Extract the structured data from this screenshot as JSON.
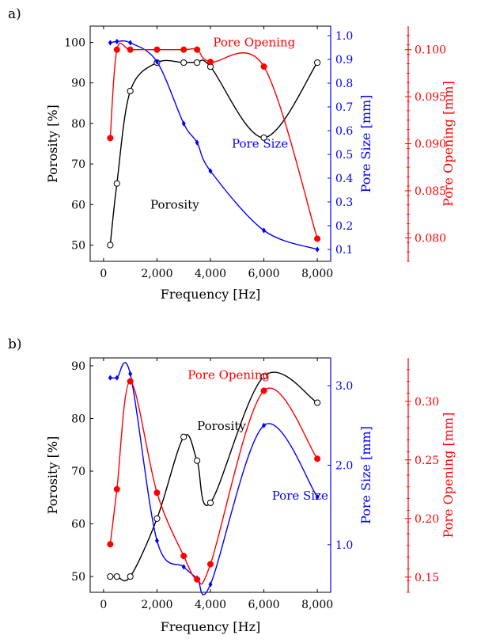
{
  "panels": [
    {
      "label": "a)",
      "chart_data": {
        "type": "line",
        "xlabel": "Frequency [Hz]",
        "x_ticks": [
          0,
          2000,
          4000,
          6000,
          8000
        ],
        "x_tick_labels": [
          "0",
          "2,000",
          "4,000",
          "6,000",
          "8,000"
        ],
        "xlim": [
          -500,
          8500
        ],
        "axes": [
          {
            "key": "left",
            "label": "Porosity [%]",
            "color": "#000000",
            "ylim": [
              46,
              104
            ],
            "ticks": [
              50,
              60,
              70,
              80,
              90,
              100
            ],
            "tick_labels": [
              "50",
              "60",
              "70",
              "80",
              "90",
              "100"
            ]
          },
          {
            "key": "right1",
            "label": "Pore Size [mm]",
            "color": "#0000ff",
            "ylim": [
              0.05,
              1.04
            ],
            "ticks": [
              0.1,
              0.2,
              0.3,
              0.4,
              0.5,
              0.6,
              0.7,
              0.8,
              0.9,
              1.0
            ],
            "tick_labels": [
              "0.1",
              "0.2",
              "0.3",
              "0.4",
              "0.5",
              "0.6",
              "0.7",
              "0.8",
              "0.9",
              "1.0"
            ]
          },
          {
            "key": "right2",
            "label": "Pore Opening [mm]",
            "color": "#ff0000",
            "ylim": [
              0.0775,
              0.1025
            ],
            "ticks": [
              0.08,
              0.085,
              0.09,
              0.095,
              0.1
            ],
            "tick_labels": [
              "0.080",
              "0.085",
              "0.090",
              "0.095",
              "0.100"
            ]
          }
        ],
        "series": [
          {
            "name": "Porosity",
            "axis": "left",
            "color": "#000000",
            "marker": "circle-open",
            "x": [
              250,
              500,
              1000,
              2000,
              3000,
              3500,
              4000,
              6000,
              8000
            ],
            "y": [
              50,
              65.2,
              88,
              95,
              95,
              95,
              94,
              76.5,
              95
            ]
          },
          {
            "name": "Pore Size",
            "axis": "right1",
            "color": "#0000ff",
            "marker": "diamond",
            "x": [
              250,
              500,
              1000,
              2000,
              3000,
              3500,
              4000,
              6000,
              8000
            ],
            "y": [
              0.97,
              0.975,
              0.97,
              0.89,
              0.63,
              0.55,
              0.43,
              0.18,
              0.1
            ]
          },
          {
            "name": "Pore Opening",
            "axis": "right2",
            "color": "#ff0000",
            "marker": "circle",
            "x": [
              250,
              500,
              1000,
              2000,
              3000,
              3500,
              4000,
              6000,
              8000
            ],
            "y": [
              0.0906,
              0.1,
              0.1,
              0.1,
              0.1,
              0.1,
              0.0987,
              0.0982,
              0.0799
            ]
          }
        ],
        "annotations": [
          {
            "text": "Pore Opening",
            "color": "#ff0000",
            "x": 4100,
            "y": 99
          },
          {
            "text": "Pore Size",
            "color": "#0000ff",
            "x": 4800,
            "y": 74
          },
          {
            "text": "Porosity",
            "color": "#000000",
            "x": 1750,
            "y": 59
          }
        ]
      }
    },
    {
      "label": "b)",
      "chart_data": {
        "type": "line",
        "xlabel": "Frequency [Hz]",
        "x_ticks": [
          0,
          2000,
          4000,
          6000,
          8000
        ],
        "x_tick_labels": [
          "0",
          "2,000",
          "4,000",
          "6,000",
          "8,000"
        ],
        "xlim": [
          -500,
          8500
        ],
        "axes": [
          {
            "key": "left",
            "label": "Porosity [%]",
            "color": "#000000",
            "ylim": [
              47,
              91.5
            ],
            "ticks": [
              50,
              60,
              70,
              80,
              90
            ],
            "tick_labels": [
              "50",
              "60",
              "70",
              "80",
              "90"
            ]
          },
          {
            "key": "right1",
            "label": "Pore Size [mm]",
            "color": "#0000ff",
            "ylim": [
              0.4,
              3.35
            ],
            "ticks": [
              1.0,
              2.0,
              3.0
            ],
            "tick_labels": [
              "1.0",
              "2.0",
              "3.0"
            ]
          },
          {
            "key": "right2",
            "label": "Pore Opening [mm]",
            "color": "#ff0000",
            "ylim": [
              0.137,
              0.337
            ],
            "ticks": [
              0.15,
              0.2,
              0.25,
              0.3
            ],
            "tick_labels": [
              "0.15",
              "0.20",
              "0.25",
              "0.30"
            ]
          }
        ],
        "series": [
          {
            "name": "Porosity",
            "axis": "left",
            "color": "#000000",
            "marker": "circle-open",
            "x": [
              250,
              500,
              1000,
              2000,
              3000,
              3500,
              4000,
              6000,
              8000
            ],
            "y": [
              50,
              50,
              50,
              61,
              76.5,
              72,
              64,
              88,
              83
            ]
          },
          {
            "name": "Pore Size",
            "axis": "right1",
            "color": "#0000ff",
            "marker": "diamond",
            "x": [
              250,
              500,
              1000,
              2000,
              3000,
              3500,
              4000,
              6000,
              8000
            ],
            "y": [
              3.1,
              3.1,
              3.15,
              1.05,
              0.72,
              0.58,
              0.5,
              2.5,
              1.6
            ]
          },
          {
            "name": "Pore Opening",
            "axis": "right2",
            "color": "#ff0000",
            "marker": "circle",
            "x": [
              250,
              500,
              1000,
              2000,
              3000,
              3500,
              4000,
              6000,
              8000
            ],
            "y": [
              0.178,
              0.225,
              0.317,
              0.222,
              0.168,
              0.148,
              0.161,
              0.309,
              0.251
            ]
          }
        ],
        "annotations": [
          {
            "text": "Pore Opening",
            "color": "#ff0000",
            "x": 3150,
            "y": 87.5
          },
          {
            "text": "Porosity",
            "color": "#000000",
            "x": 3500,
            "y": 77.8
          },
          {
            "text": "Pore Size",
            "color": "#0000ff",
            "x": 6300,
            "y": 64.6
          }
        ]
      }
    }
  ]
}
